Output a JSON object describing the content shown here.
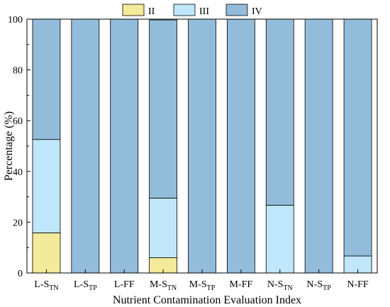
{
  "chart_data": {
    "type": "bar",
    "stacked": true,
    "xlabel": "Nutrient Contamination Evaluation Index",
    "ylabel": "Percentage (%)",
    "ylim": [
      0,
      100
    ],
    "yticks": [
      "0",
      "20",
      "40",
      "60",
      "80",
      "100"
    ],
    "legend_position": "top",
    "categories": [
      {
        "main": "L-S",
        "sub": "TN"
      },
      {
        "main": "L-S",
        "sub": "TP"
      },
      {
        "main": "L-FF",
        "sub": ""
      },
      {
        "main": "M-S",
        "sub": "TN"
      },
      {
        "main": "M-S",
        "sub": "TP"
      },
      {
        "main": "M-FF",
        "sub": ""
      },
      {
        "main": "N-S",
        "sub": "TN"
      },
      {
        "main": "N-S",
        "sub": "TP"
      },
      {
        "main": "N-FF",
        "sub": ""
      }
    ],
    "series": [
      {
        "name": "II",
        "color": "#f3ea9a",
        "values": [
          15.8,
          0,
          0,
          6.0,
          0,
          0,
          0,
          0,
          0
        ]
      },
      {
        "name": "III",
        "color": "#bfe6fb",
        "values": [
          36.8,
          0,
          0,
          23.5,
          0,
          0,
          26.7,
          0,
          6.7
        ]
      },
      {
        "name": "IV",
        "color": "#92bcd9",
        "values": [
          47.4,
          100,
          100,
          70.2,
          100,
          100,
          73.3,
          100,
          93.3
        ]
      }
    ]
  }
}
